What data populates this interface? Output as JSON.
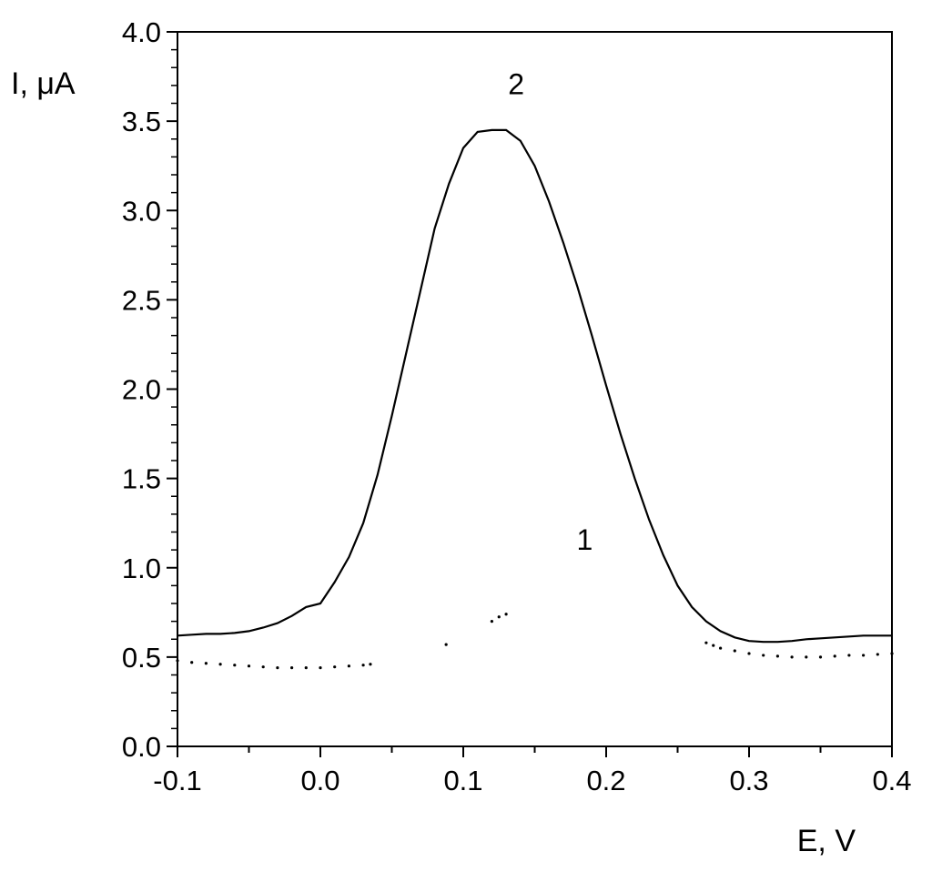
{
  "chart_data": {
    "type": "line",
    "title": "",
    "xlabel": "E, V",
    "ylabel": "I, μA",
    "xlim": [
      -0.1,
      0.4
    ],
    "ylim": [
      0.0,
      4.0
    ],
    "x_ticks": [
      -0.1,
      0.0,
      0.1,
      0.2,
      0.3,
      0.4
    ],
    "x_tick_labels": [
      "-0.1",
      "0.0",
      "0.1",
      "0.2",
      "0.3",
      "0.4"
    ],
    "y_ticks": [
      0.0,
      0.5,
      1.0,
      1.5,
      2.0,
      2.5,
      3.0,
      3.5,
      4.0
    ],
    "y_tick_labels": [
      "0.0",
      "0.5",
      "1.0",
      "1.5",
      "2.0",
      "2.5",
      "3.0",
      "3.5",
      "4.0"
    ],
    "grid": false,
    "legend": "none",
    "series": [
      {
        "label": "1",
        "line_style": "dotted",
        "color": "#000000",
        "points": [
          {
            "x": -0.1,
            "y": 0.48
          },
          {
            "x": -0.09,
            "y": 0.47
          },
          {
            "x": -0.08,
            "y": 0.465
          },
          {
            "x": -0.07,
            "y": 0.46
          },
          {
            "x": -0.06,
            "y": 0.455
          },
          {
            "x": -0.05,
            "y": 0.45
          },
          {
            "x": -0.04,
            "y": 0.445
          },
          {
            "x": -0.03,
            "y": 0.44
          },
          {
            "x": -0.02,
            "y": 0.44
          },
          {
            "x": -0.01,
            "y": 0.44
          },
          {
            "x": 0.0,
            "y": 0.44
          },
          {
            "x": 0.01,
            "y": 0.445
          },
          {
            "x": 0.02,
            "y": 0.45
          },
          {
            "x": 0.03,
            "y": 0.455
          },
          {
            "x": 0.035,
            "y": 0.46
          },
          {
            "x": 0.088,
            "y": 0.57
          },
          {
            "x": 0.12,
            "y": 0.7
          },
          {
            "x": 0.125,
            "y": 0.725
          },
          {
            "x": 0.13,
            "y": 0.74
          },
          {
            "x": 0.27,
            "y": 0.58
          },
          {
            "x": 0.275,
            "y": 0.565
          },
          {
            "x": 0.28,
            "y": 0.55
          },
          {
            "x": 0.29,
            "y": 0.535
          },
          {
            "x": 0.3,
            "y": 0.52
          },
          {
            "x": 0.31,
            "y": 0.51
          },
          {
            "x": 0.32,
            "y": 0.505
          },
          {
            "x": 0.33,
            "y": 0.5
          },
          {
            "x": 0.34,
            "y": 0.5
          },
          {
            "x": 0.35,
            "y": 0.5
          },
          {
            "x": 0.36,
            "y": 0.505
          },
          {
            "x": 0.37,
            "y": 0.51
          },
          {
            "x": 0.38,
            "y": 0.51
          },
          {
            "x": 0.39,
            "y": 0.515
          },
          {
            "x": 0.4,
            "y": 0.52
          }
        ]
      },
      {
        "label": "2",
        "line_style": "solid",
        "color": "#000000",
        "points": [
          {
            "x": -0.1,
            "y": 0.62
          },
          {
            "x": -0.09,
            "y": 0.625
          },
          {
            "x": -0.08,
            "y": 0.63
          },
          {
            "x": -0.07,
            "y": 0.63
          },
          {
            "x": -0.06,
            "y": 0.635
          },
          {
            "x": -0.05,
            "y": 0.645
          },
          {
            "x": -0.04,
            "y": 0.665
          },
          {
            "x": -0.03,
            "y": 0.69
          },
          {
            "x": -0.02,
            "y": 0.73
          },
          {
            "x": -0.01,
            "y": 0.78
          },
          {
            "x": 0.0,
            "y": 0.8
          },
          {
            "x": 0.01,
            "y": 0.92
          },
          {
            "x": 0.02,
            "y": 1.06
          },
          {
            "x": 0.03,
            "y": 1.25
          },
          {
            "x": 0.04,
            "y": 1.52
          },
          {
            "x": 0.05,
            "y": 1.85
          },
          {
            "x": 0.06,
            "y": 2.2
          },
          {
            "x": 0.07,
            "y": 2.55
          },
          {
            "x": 0.08,
            "y": 2.9
          },
          {
            "x": 0.09,
            "y": 3.15
          },
          {
            "x": 0.1,
            "y": 3.35
          },
          {
            "x": 0.11,
            "y": 3.44
          },
          {
            "x": 0.12,
            "y": 3.45
          },
          {
            "x": 0.13,
            "y": 3.45
          },
          {
            "x": 0.14,
            "y": 3.39
          },
          {
            "x": 0.15,
            "y": 3.25
          },
          {
            "x": 0.16,
            "y": 3.05
          },
          {
            "x": 0.17,
            "y": 2.82
          },
          {
            "x": 0.18,
            "y": 2.57
          },
          {
            "x": 0.19,
            "y": 2.3
          },
          {
            "x": 0.2,
            "y": 2.02
          },
          {
            "x": 0.21,
            "y": 1.75
          },
          {
            "x": 0.22,
            "y": 1.5
          },
          {
            "x": 0.23,
            "y": 1.27
          },
          {
            "x": 0.24,
            "y": 1.07
          },
          {
            "x": 0.25,
            "y": 0.9
          },
          {
            "x": 0.26,
            "y": 0.78
          },
          {
            "x": 0.27,
            "y": 0.7
          },
          {
            "x": 0.28,
            "y": 0.645
          },
          {
            "x": 0.29,
            "y": 0.61
          },
          {
            "x": 0.3,
            "y": 0.59
          },
          {
            "x": 0.31,
            "y": 0.585
          },
          {
            "x": 0.32,
            "y": 0.585
          },
          {
            "x": 0.33,
            "y": 0.59
          },
          {
            "x": 0.34,
            "y": 0.6
          },
          {
            "x": 0.35,
            "y": 0.605
          },
          {
            "x": 0.36,
            "y": 0.61
          },
          {
            "x": 0.37,
            "y": 0.615
          },
          {
            "x": 0.38,
            "y": 0.62
          },
          {
            "x": 0.39,
            "y": 0.62
          },
          {
            "x": 0.4,
            "y": 0.62
          }
        ]
      }
    ],
    "annotations": [
      {
        "text": "2",
        "x": 0.137,
        "y": 3.65
      },
      {
        "text": "1",
        "x": 0.185,
        "y": 1.1
      }
    ]
  }
}
